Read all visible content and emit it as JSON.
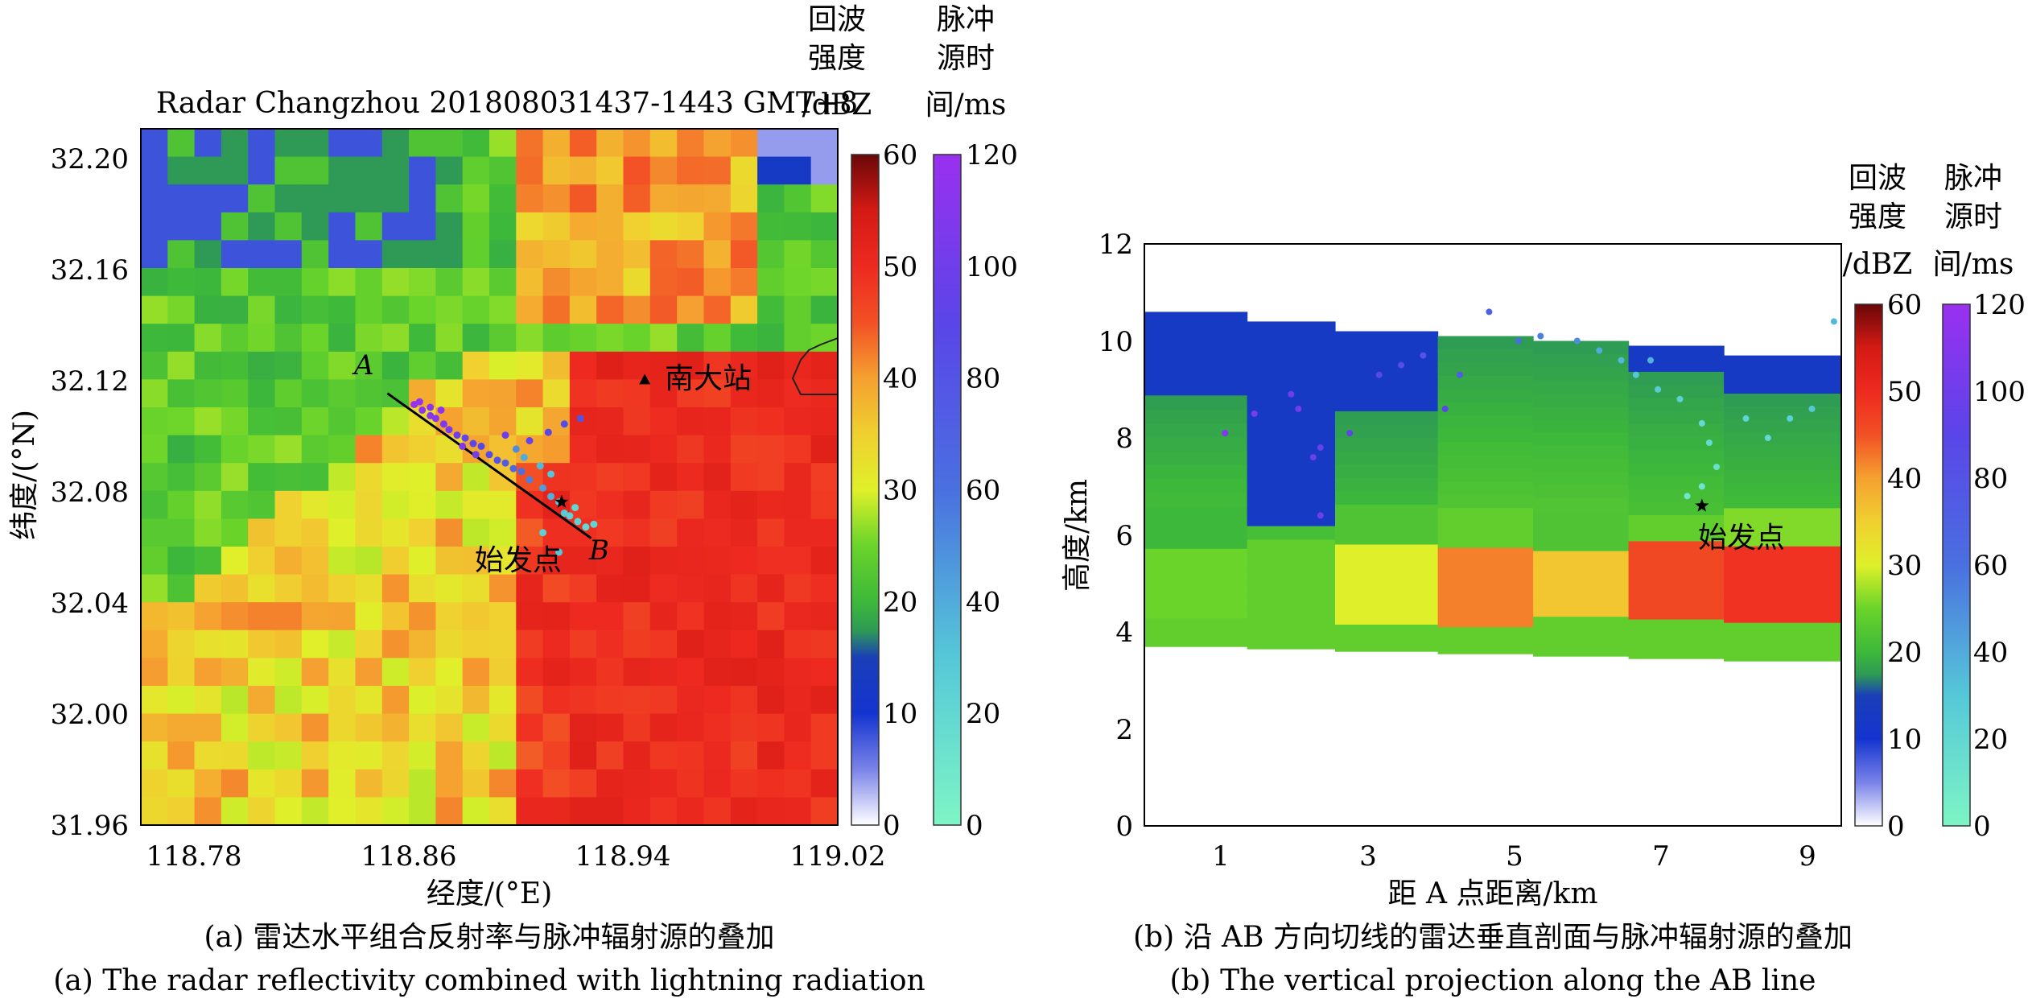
{
  "colors": {
    "reflectivity_stops": [
      [
        0,
        "#ffffff"
      ],
      [
        5,
        "#7a83e8"
      ],
      [
        10,
        "#1434d0"
      ],
      [
        14,
        "#1a3fb8"
      ],
      [
        17,
        "#2e9a55"
      ],
      [
        20,
        "#3db83a"
      ],
      [
        25,
        "#6ad42a"
      ],
      [
        30,
        "#dff02a"
      ],
      [
        35,
        "#f0d030"
      ],
      [
        40,
        "#f5a030"
      ],
      [
        45,
        "#f25025"
      ],
      [
        50,
        "#ee2a20"
      ],
      [
        55,
        "#d41a14"
      ],
      [
        60,
        "#6a0808"
      ]
    ],
    "pulse_stops": [
      [
        0,
        "#7ef5c5"
      ],
      [
        30,
        "#55c8d8"
      ],
      [
        60,
        "#4a70e0"
      ],
      [
        90,
        "#5a45e8"
      ],
      [
        120,
        "#9a30f0"
      ]
    ],
    "marker": "#000000"
  },
  "legend": {
    "echo_title": [
      "回波",
      "强度",
      "/dBZ"
    ],
    "pulse_title": [
      "脉冲",
      "源时",
      "间/ms"
    ],
    "echo_ticks": [
      "0",
      "10",
      "20",
      "30",
      "40",
      "50",
      "60"
    ],
    "pulse_ticks": [
      "0",
      "20",
      "40",
      "60",
      "80",
      "100",
      "120"
    ]
  },
  "chart_data": [
    {
      "type": "heatmap",
      "title": "Radar Changzhou 201808031437-1443 GMT+8",
      "xlabel": "经度/(°E)",
      "ylabel": "纬度/(°N)",
      "xlim": [
        118.76,
        119.02
      ],
      "ylim": [
        31.96,
        32.21
      ],
      "xticks": [
        "118.78",
        "118.86",
        "118.94",
        "119.02"
      ],
      "yticks": [
        "31.96",
        "32.00",
        "32.04",
        "32.08",
        "32.12",
        "32.16",
        "32.20"
      ],
      "grid": false,
      "colorbar_range_dbz": [
        0,
        60
      ],
      "pulse_colorbar_range_ms": [
        0,
        120
      ],
      "line_AB": {
        "A": [
          118.852,
          32.115
        ],
        "B": [
          118.928,
          32.063
        ],
        "labels": [
          "A",
          "B"
        ]
      },
      "annotations": [
        {
          "text": "南大站",
          "lon": 118.948,
          "lat": 32.12,
          "marker": "triangle"
        },
        {
          "text": "始发点",
          "lon": 118.917,
          "lat": 32.076,
          "marker": "star"
        }
      ],
      "caption_cn": "(a) 雷达水平组合反射率与脉冲辐射源的叠加",
      "caption_en": "(a) The radar reflectivity combined with lightning radiation"
    },
    {
      "type": "heatmap",
      "title": "",
      "xlabel": "距 A 点距离/km",
      "ylabel": "高度/km",
      "xlim": [
        0,
        9.5
      ],
      "ylim": [
        0,
        12
      ],
      "xticks": [
        "1",
        "3",
        "5",
        "7",
        "9"
      ],
      "yticks": [
        "0",
        "2",
        "4",
        "6",
        "8",
        "10",
        "12"
      ],
      "grid": false,
      "colorbar_range_dbz": [
        0,
        60
      ],
      "pulse_colorbar_range_ms": [
        0,
        120
      ],
      "annotations": [
        {
          "text": "始发点",
          "x": 7.6,
          "y": 6.6,
          "marker": "star"
        }
      ],
      "caption_cn": "(b) 沿 AB 方向切线的雷达垂直剖面与脉冲辐射源的叠加",
      "caption_en": "(b) The vertical projection along the AB line"
    }
  ],
  "pulse_points_a": [
    [
      118.862,
      32.111,
      118
    ],
    [
      118.865,
      32.109,
      115
    ],
    [
      118.868,
      32.107,
      112
    ],
    [
      118.864,
      32.112,
      116
    ],
    [
      118.87,
      32.106,
      110
    ],
    [
      118.873,
      32.104,
      108
    ],
    [
      118.868,
      32.11,
      114
    ],
    [
      118.875,
      32.102,
      105
    ],
    [
      118.878,
      32.1,
      100
    ],
    [
      118.881,
      32.099,
      96
    ],
    [
      118.884,
      32.097,
      92
    ],
    [
      118.887,
      32.096,
      90
    ],
    [
      118.872,
      32.109,
      112
    ],
    [
      118.89,
      32.093,
      85
    ],
    [
      118.893,
      32.091,
      80
    ],
    [
      118.896,
      32.09,
      75
    ],
    [
      118.899,
      32.088,
      66
    ],
    [
      118.902,
      32.087,
      60
    ],
    [
      118.905,
      32.084,
      55
    ],
    [
      118.91,
      32.081,
      45
    ],
    [
      118.913,
      32.078,
      38
    ],
    [
      118.916,
      32.076,
      30
    ],
    [
      118.92,
      32.071,
      25
    ],
    [
      118.923,
      32.069,
      22
    ],
    [
      118.926,
      32.067,
      20
    ],
    [
      118.918,
      32.072,
      28
    ],
    [
      118.9,
      32.095,
      50
    ],
    [
      118.905,
      32.098,
      95
    ],
    [
      118.912,
      32.101,
      90
    ],
    [
      118.918,
      32.104,
      85
    ],
    [
      118.924,
      32.106,
      80
    ],
    [
      118.896,
      32.1,
      100
    ],
    [
      118.903,
      32.092,
      40
    ],
    [
      118.909,
      32.089,
      35
    ],
    [
      118.913,
      32.086,
      30
    ],
    [
      118.885,
      32.093,
      102
    ],
    [
      118.88,
      32.096,
      108
    ],
    [
      118.916,
      32.058,
      30
    ],
    [
      118.91,
      32.065,
      25
    ],
    [
      118.922,
      32.074,
      20
    ],
    [
      118.929,
      32.068,
      22
    ]
  ],
  "pulse_points_b": [
    [
      1.1,
      8.1,
      110
    ],
    [
      1.5,
      8.5,
      105
    ],
    [
      2.0,
      8.9,
      100
    ],
    [
      2.1,
      8.6,
      102
    ],
    [
      2.3,
      7.6,
      98
    ],
    [
      2.4,
      7.8,
      95
    ],
    [
      2.4,
      6.4,
      100
    ],
    [
      2.8,
      8.1,
      92
    ],
    [
      3.2,
      9.3,
      88
    ],
    [
      3.5,
      9.5,
      85
    ],
    [
      3.8,
      9.7,
      80
    ],
    [
      4.1,
      8.6,
      90
    ],
    [
      4.3,
      9.3,
      75
    ],
    [
      4.7,
      10.6,
      70
    ],
    [
      5.1,
      10.0,
      60
    ],
    [
      5.4,
      10.1,
      55
    ],
    [
      5.9,
      10.0,
      50
    ],
    [
      6.2,
      9.8,
      40
    ],
    [
      6.5,
      9.6,
      35
    ],
    [
      6.7,
      9.3,
      30
    ],
    [
      7.0,
      9.0,
      28
    ],
    [
      7.3,
      8.8,
      25
    ],
    [
      7.6,
      8.3,
      20
    ],
    [
      7.7,
      7.9,
      18
    ],
    [
      7.8,
      7.4,
      15
    ],
    [
      7.6,
      7.0,
      12
    ],
    [
      8.2,
      8.4,
      22
    ],
    [
      8.5,
      8.0,
      20
    ],
    [
      8.8,
      8.4,
      25
    ],
    [
      9.1,
      8.6,
      30
    ],
    [
      9.4,
      10.4,
      35
    ],
    [
      6.9,
      9.6,
      38
    ],
    [
      7.4,
      6.8,
      10
    ]
  ]
}
